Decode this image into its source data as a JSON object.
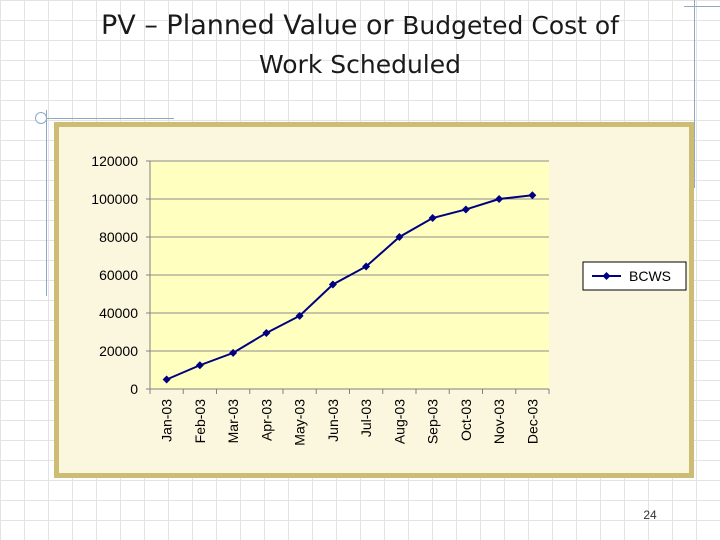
{
  "slide": {
    "title_part1": "PV – Planned Value or",
    "title_part2": "Budgeted Cost of",
    "title_line2": "Work Scheduled",
    "page_number": "24"
  },
  "chart_data": {
    "type": "line",
    "categories": [
      "Jan-03",
      "Feb-03",
      "Mar-03",
      "Apr-03",
      "May-03",
      "Jun-03",
      "Jul-03",
      "Aug-03",
      "Sep-03",
      "Oct-03",
      "Nov-03",
      "Dec-03"
    ],
    "series": [
      {
        "name": "BCWS",
        "values": [
          5000,
          12500,
          19000,
          29500,
          38500,
          55000,
          64500,
          80000,
          90000,
          94500,
          100000,
          102000
        ],
        "color": "#000080",
        "marker": "diamond"
      }
    ],
    "title": "",
    "xlabel": "",
    "ylabel": "",
    "ylim": [
      0,
      120000
    ],
    "yticks": [
      "0",
      "20000",
      "40000",
      "60000",
      "80000",
      "100000",
      "120000"
    ],
    "grid": "horizontal",
    "legend": "right",
    "plot_background": "#ffffc0",
    "frame_border_color": "#cdbd74"
  }
}
